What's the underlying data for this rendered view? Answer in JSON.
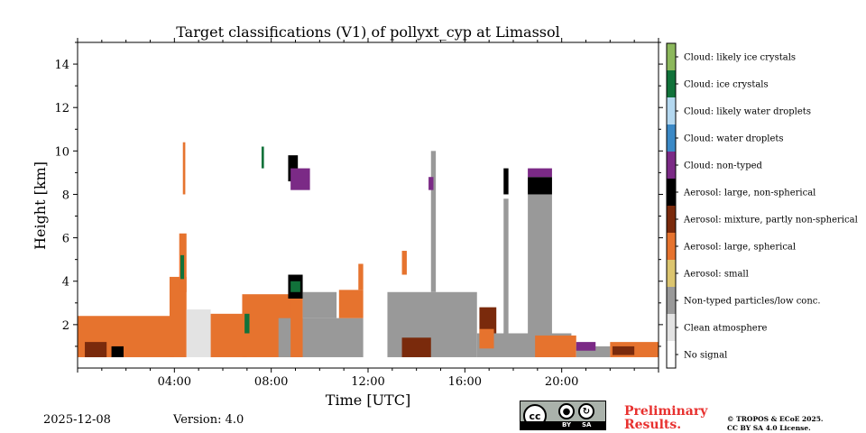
{
  "chart_data": {
    "type": "heatmap",
    "title": "Target classifications (V1) of pollyxt_cyp at Limassol",
    "xlabel": "Time [UTC]",
    "ylabel": "Height [km]",
    "xlim_hours": [
      0,
      24
    ],
    "ylim_km": [
      0,
      15
    ],
    "x_ticks": [
      {
        "hour": 4,
        "label": "04:00"
      },
      {
        "hour": 8,
        "label": "08:00"
      },
      {
        "hour": 12,
        "label": "12:00"
      },
      {
        "hour": 16,
        "label": "16:00"
      },
      {
        "hour": 20,
        "label": "20:00"
      }
    ],
    "y_ticks": [
      {
        "km": 2,
        "label": "2"
      },
      {
        "km": 4,
        "label": "4"
      },
      {
        "km": 6,
        "label": "6"
      },
      {
        "km": 8,
        "label": "8"
      },
      {
        "km": 10,
        "label": "10"
      },
      {
        "km": 12,
        "label": "12"
      },
      {
        "km": 14,
        "label": "14"
      }
    ],
    "colorbar": [
      {
        "label": "No signal",
        "color": "#ffffff"
      },
      {
        "label": "Clean atmosphere",
        "color": "#e3e3e3"
      },
      {
        "label": "Non-typed particles/low conc.",
        "color": "#999999"
      },
      {
        "label": "Aerosol: small",
        "color": "#dcc56f"
      },
      {
        "label": "Aerosol: large, spherical",
        "color": "#e6732e"
      },
      {
        "label": "Aerosol: mixture, partly non-spherical",
        "color": "#7a2a0c"
      },
      {
        "label": "Aerosol: large, non-spherical",
        "color": "#000000"
      },
      {
        "label": "Cloud: non-typed",
        "color": "#7b2a86"
      },
      {
        "label": "Cloud: water droplets",
        "color": "#3b89c6"
      },
      {
        "label": "Cloud: likely water droplets",
        "color": "#b4d8f0"
      },
      {
        "label": "Cloud: ice crystals",
        "color": "#11723a"
      },
      {
        "label": "Cloud: likely ice crystals",
        "color": "#8cb85c"
      }
    ],
    "regions": [
      {
        "cls": 4,
        "t0": 0.0,
        "t1": 4.0,
        "h0": 0.5,
        "h1": 2.4
      },
      {
        "cls": 5,
        "t0": 0.3,
        "t1": 1.2,
        "h0": 0.5,
        "h1": 1.2
      },
      {
        "cls": 6,
        "t0": 1.4,
        "t1": 1.9,
        "h0": 0.5,
        "h1": 1.0
      },
      {
        "cls": 4,
        "t0": 3.8,
        "t1": 4.5,
        "h0": 0.5,
        "h1": 4.2
      },
      {
        "cls": 4,
        "t0": 4.2,
        "t1": 4.5,
        "h0": 3.5,
        "h1": 6.2
      },
      {
        "cls": 10,
        "t0": 4.25,
        "t1": 4.4,
        "h0": 4.1,
        "h1": 5.2
      },
      {
        "cls": 1,
        "t0": 4.5,
        "t1": 5.5,
        "h0": 0.5,
        "h1": 2.7
      },
      {
        "cls": 4,
        "t0": 5.5,
        "t1": 7.0,
        "h0": 0.5,
        "h1": 2.5
      },
      {
        "cls": 4,
        "t0": 6.8,
        "t1": 9.0,
        "h0": 0.5,
        "h1": 3.4
      },
      {
        "cls": 10,
        "t0": 6.9,
        "t1": 7.1,
        "h0": 1.6,
        "h1": 2.5
      },
      {
        "cls": 2,
        "t0": 8.3,
        "t1": 11.8,
        "h0": 0.5,
        "h1": 2.3
      },
      {
        "cls": 4,
        "t0": 8.8,
        "t1": 9.3,
        "h0": 0.5,
        "h1": 3.6
      },
      {
        "cls": 6,
        "t0": 8.7,
        "t1": 9.3,
        "h0": 3.2,
        "h1": 4.3
      },
      {
        "cls": 10,
        "t0": 8.8,
        "t1": 9.2,
        "h0": 3.5,
        "h1": 4.0
      },
      {
        "cls": 2,
        "t0": 9.3,
        "t1": 10.7,
        "h0": 2.3,
        "h1": 3.5
      },
      {
        "cls": 4,
        "t0": 10.8,
        "t1": 11.8,
        "h0": 2.3,
        "h1": 3.6
      },
      {
        "cls": 4,
        "t0": 11.6,
        "t1": 11.8,
        "h0": 3.6,
        "h1": 4.8
      },
      {
        "cls": 6,
        "t0": 8.7,
        "t1": 9.1,
        "h0": 8.6,
        "h1": 9.8
      },
      {
        "cls": 7,
        "t0": 8.8,
        "t1": 9.6,
        "h0": 8.2,
        "h1": 9.2
      },
      {
        "cls": 10,
        "t0": 7.6,
        "t1": 7.7,
        "h0": 9.2,
        "h1": 10.2
      },
      {
        "cls": 2,
        "t0": 12.8,
        "t1": 16.5,
        "h0": 0.5,
        "h1": 3.5
      },
      {
        "cls": 2,
        "t0": 14.6,
        "t1": 14.8,
        "h0": 3.5,
        "h1": 10.0
      },
      {
        "cls": 5,
        "t0": 13.4,
        "t1": 14.6,
        "h0": 0.5,
        "h1": 1.4
      },
      {
        "cls": 4,
        "t0": 13.4,
        "t1": 13.6,
        "h0": 4.3,
        "h1": 5.4
      },
      {
        "cls": 7,
        "t0": 14.5,
        "t1": 14.7,
        "h0": 8.2,
        "h1": 8.8
      },
      {
        "cls": 2,
        "t0": 16.5,
        "t1": 20.4,
        "h0": 0.5,
        "h1": 1.6
      },
      {
        "cls": 5,
        "t0": 16.6,
        "t1": 17.3,
        "h0": 1.6,
        "h1": 2.8
      },
      {
        "cls": 4,
        "t0": 16.6,
        "t1": 17.2,
        "h0": 0.9,
        "h1": 1.8
      },
      {
        "cls": 2,
        "t0": 17.6,
        "t1": 17.8,
        "h0": 1.6,
        "h1": 7.8
      },
      {
        "cls": 6,
        "t0": 17.6,
        "t1": 17.8,
        "h0": 8.0,
        "h1": 9.2
      },
      {
        "cls": 2,
        "t0": 18.6,
        "t1": 19.6,
        "h0": 1.6,
        "h1": 8.0
      },
      {
        "cls": 6,
        "t0": 18.6,
        "t1": 19.6,
        "h0": 8.0,
        "h1": 8.8
      },
      {
        "cls": 7,
        "t0": 18.6,
        "t1": 19.6,
        "h0": 8.8,
        "h1": 9.2
      },
      {
        "cls": 4,
        "t0": 18.9,
        "t1": 20.6,
        "h0": 0.5,
        "h1": 1.5
      },
      {
        "cls": 2,
        "t0": 20.6,
        "t1": 22.0,
        "h0": 0.5,
        "h1": 1.0
      },
      {
        "cls": 7,
        "t0": 20.6,
        "t1": 21.4,
        "h0": 0.8,
        "h1": 1.2
      },
      {
        "cls": 4,
        "t0": 22.0,
        "t1": 24.0,
        "h0": 0.5,
        "h1": 1.2
      },
      {
        "cls": 5,
        "t0": 22.1,
        "t1": 23.0,
        "h0": 0.6,
        "h1": 1.0
      },
      {
        "cls": 4,
        "t0": 4.35,
        "t1": 4.45,
        "h0": 8.0,
        "h1": 10.4
      }
    ]
  },
  "footer": {
    "date": "2025-12-08",
    "version": "Version: 4.0",
    "preliminary_line1": "Preliminary",
    "preliminary_line2": "Results.",
    "copyright_line1": "© TROPOS & ECoE 2025.",
    "copyright_line2": "CC BY SA 4.0 License.",
    "cc_mark": "cc",
    "cc_by": "BY",
    "cc_sa": "SA"
  }
}
